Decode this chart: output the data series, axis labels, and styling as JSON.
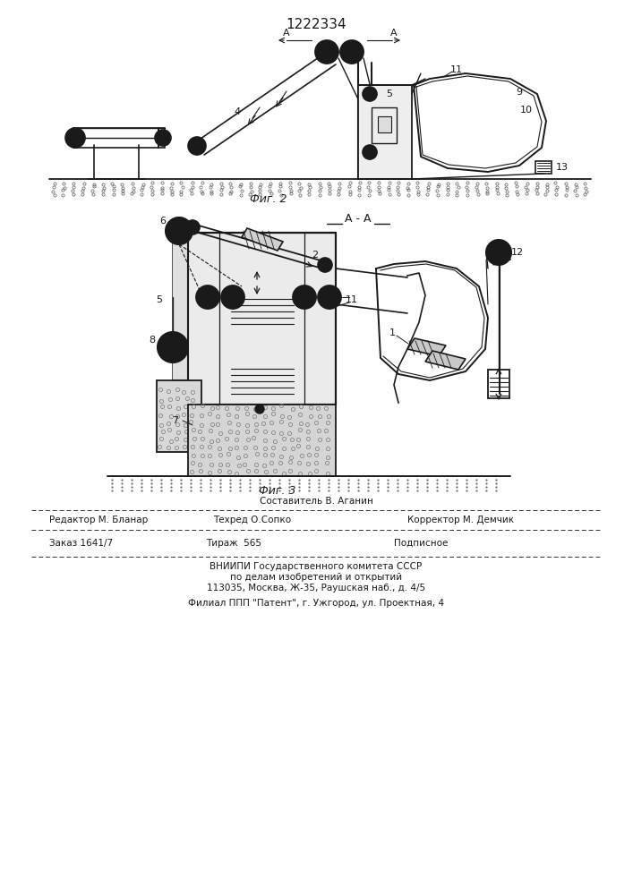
{
  "patent_number": "1222334",
  "fig2_label": "Фиг. 2",
  "fig3_label": "Фиг. 3",
  "section_label": "А - А",
  "background_color": "#ffffff",
  "line_color": "#1a1a1a",
  "footer": {
    "line1_center": "Составитель В. Аганин",
    "line2_left": "Редактор М. Бланар",
    "line2_mid": "Техред О.Сопко",
    "line2_right": "Корректор М. Демчик",
    "line3_left": "Заказ 1641/7",
    "line3_mid": "Тираж  565",
    "line3_right": "Подписное",
    "line4": "ВНИИПИ Государственного комитета СССР",
    "line5": "по делам изобретений и открытий",
    "line6": "113035, Москва, Ж-35, Раушская наб., д. 4/5",
    "line7": "Филиал ППП \"Патент\", г. Ужгород, ул. Проектная, 4"
  }
}
